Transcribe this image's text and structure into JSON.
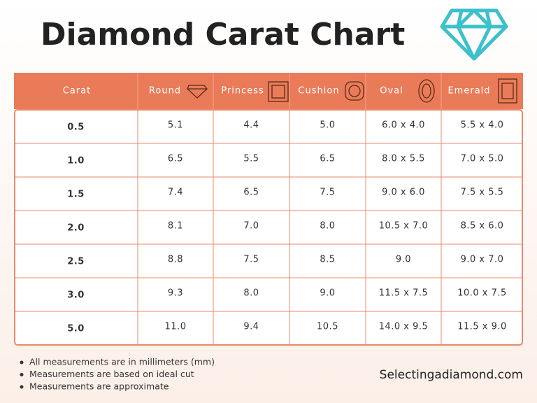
{
  "header": {
    "title": "Diamond Carat Chart"
  },
  "table": {
    "headers": [
      "Carat",
      "Round",
      "Princess",
      "Cushion",
      "Oval",
      "Emerald"
    ],
    "rows": [
      [
        "0.5",
        "5.1",
        "4.4",
        "5.0",
        "6.0 x 4.0",
        "5.5 x 4.0"
      ],
      [
        "1.0",
        "6.5",
        "5.5",
        "6.5",
        "8.0 x 5.5",
        "7.0 x 5.0"
      ],
      [
        "1.5",
        "7.4",
        "6.5",
        "7.5",
        "9.0 x 6.0",
        "7.5 x 5.5"
      ],
      [
        "2.0",
        "8.1",
        "7.0",
        "8.0",
        "10.5 x 7.0",
        "8.5 x 6.0"
      ],
      [
        "2.5",
        "8.8",
        "7.5",
        "8.5",
        "9.0",
        "9.0 x 7.0"
      ],
      [
        "3.0",
        "9.3",
        "8.0",
        "9.0",
        "11.5 x 7.5",
        "10.0 x 7.5"
      ],
      [
        "5.0",
        "11.0",
        "9.4",
        "10.5",
        "14.0 x 9.5",
        "11.5 x 9.0"
      ]
    ]
  },
  "notes": [
    "All measurements are in millimeters (mm)",
    "Measurements are based on ideal cut",
    "Measurements are approximate"
  ],
  "website": "Selectingadiamond.com"
}
